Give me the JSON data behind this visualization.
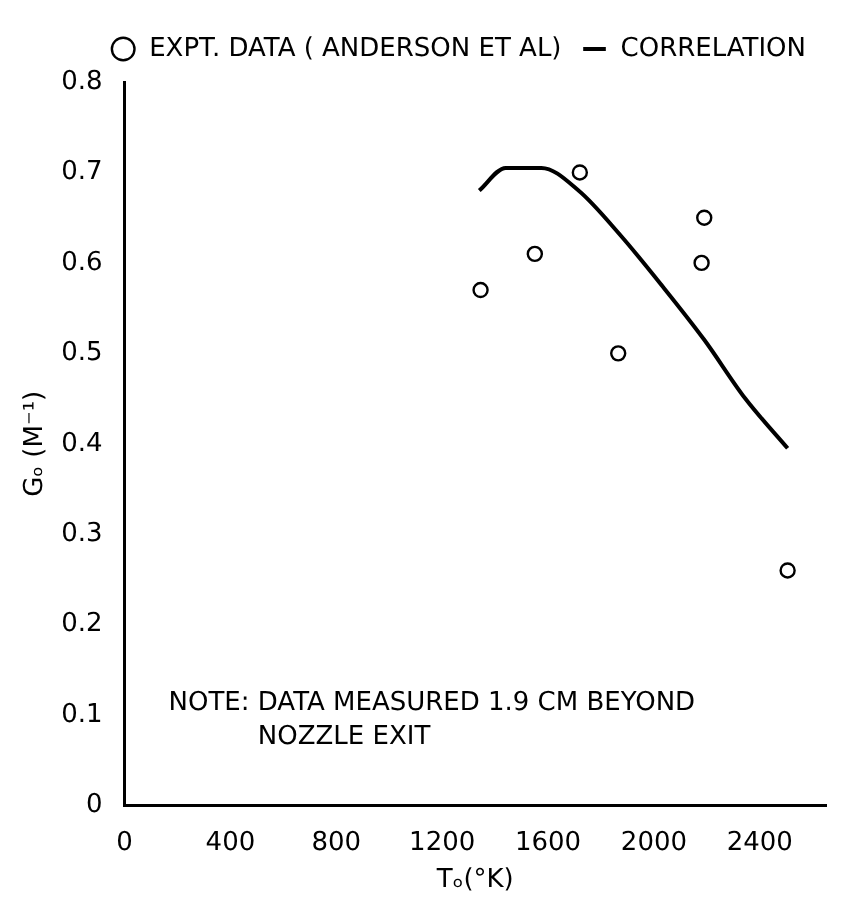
{
  "chart_data": {
    "type": "scatter",
    "xlabel": "Tₒ(°K)",
    "ylabel": "Gₒ (M⁻¹)",
    "xlim": [
      0,
      2650
    ],
    "xticks": [
      0,
      400,
      800,
      1200,
      1600,
      2000,
      2400
    ],
    "ylim": [
      0,
      0.8
    ],
    "yticks": [
      0,
      0.1,
      0.2,
      0.3,
      0.4,
      0.5,
      0.6,
      0.7,
      0.8
    ],
    "grid": false,
    "legend": "top right",
    "series": [
      {
        "name": "EXPT. DATA ( ANDERSON ET AL)",
        "marker": "circle",
        "color": "#000000",
        "x": [
          1345,
          1550,
          1720,
          1865,
          2180,
          2190,
          2505
        ],
        "values": [
          0.57,
          0.61,
          0.7,
          0.5,
          0.6,
          0.65,
          0.26
        ]
      },
      {
        "name": "CORRELATION",
        "type": "line",
        "marker": "none",
        "line_style": "solid",
        "color": "#000000",
        "x": [
          1340,
          1440,
          1575,
          1715,
          1875,
          2030,
          2190,
          2345,
          2505
        ],
        "values": [
          0.68,
          0.705,
          0.705,
          0.68,
          0.63,
          0.575,
          0.515,
          0.45,
          0.395
        ]
      }
    ],
    "annotations": [
      "NOTE: DATA MEASURED 1.9 CM BEYOND NOZZLE EXIT"
    ]
  }
}
